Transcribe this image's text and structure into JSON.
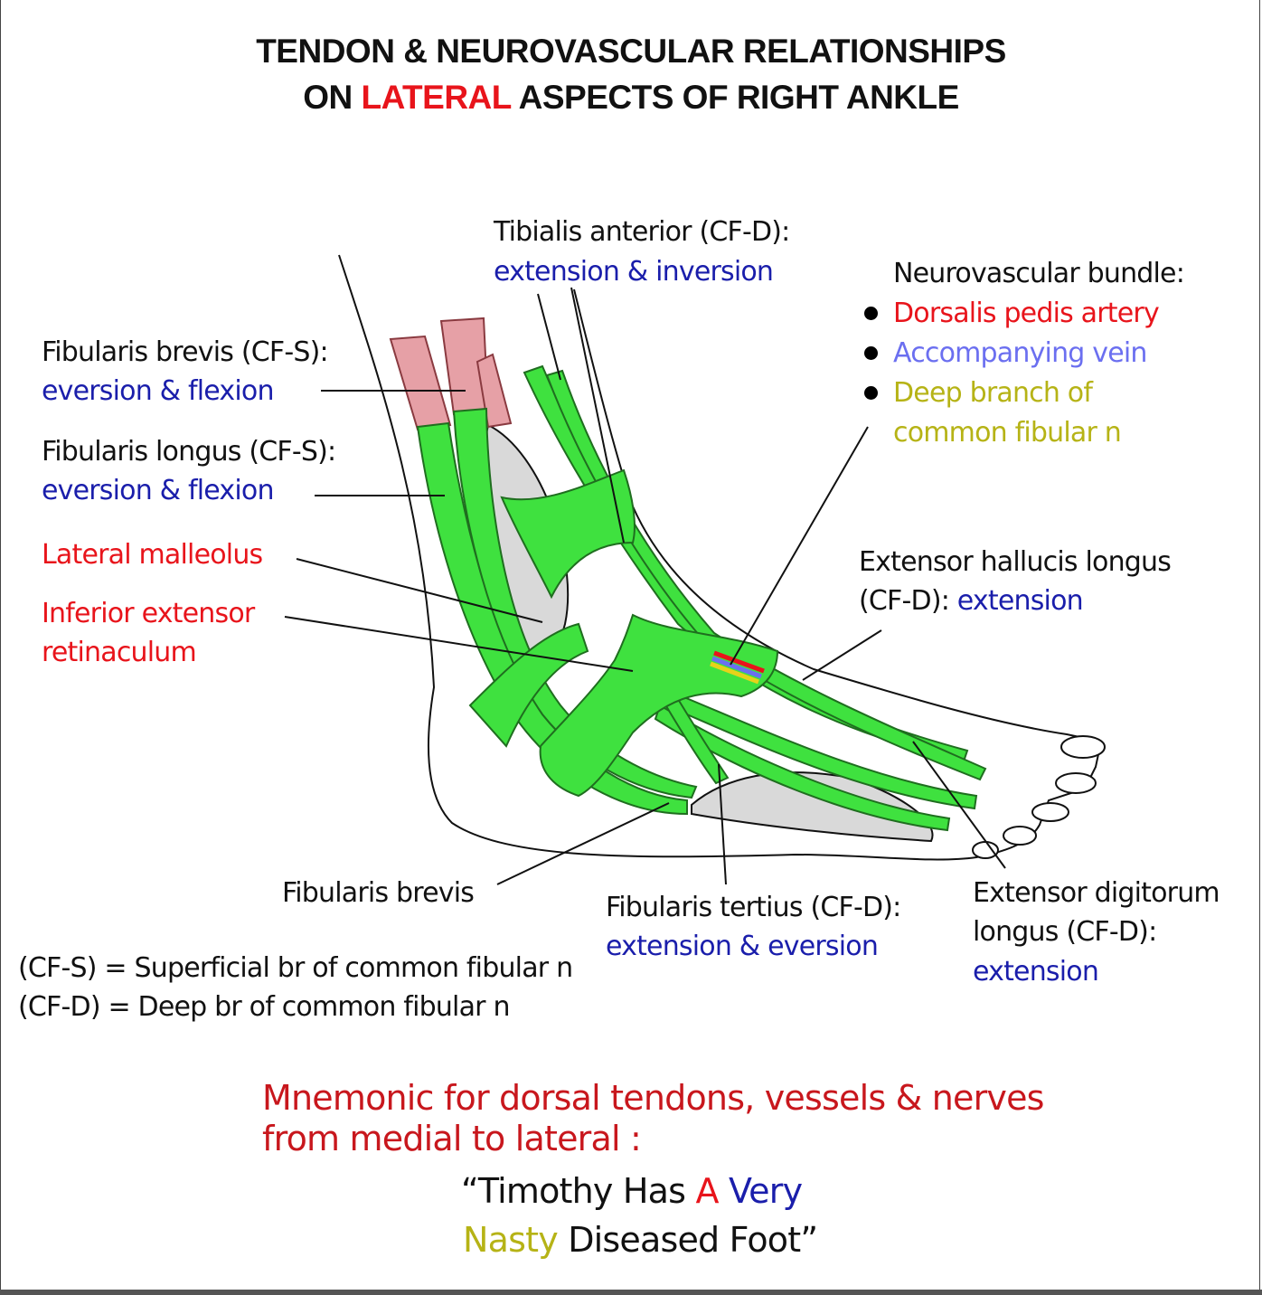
{
  "title": {
    "line1": "TENDON & NEUROVASCULAR RELATIONSHIPS",
    "line2_pre": "ON",
    "line2_highlight": "LATERAL",
    "line2_post": "ASPECTS OF RIGHT ANKLE"
  },
  "labels": {
    "tibialis_anterior": "Tibialis anterior (CF-D):",
    "tibialis_anterior_action": "extension & inversion",
    "fibularis_brevis": "Fibularis brevis (CF-S):",
    "fibularis_brevis_action": "eversion & flexion",
    "fibularis_longus": "Fibularis longus (CF-S):",
    "fibularis_longus_action": "eversion & flexion",
    "lateral_malleolus": "Lateral malleolus",
    "inferior_extensor_1": "Inferior extensor",
    "inferior_extensor_2": "retinaculum",
    "ehl_1": "Extensor hallucis longus",
    "ehl_2": "(CF-D):",
    "ehl_action": "extension",
    "fibularis_brevis_bottom": "Fibularis brevis",
    "fibularis_tertius": "Fibularis tertius (CF-D):",
    "fibularis_tertius_action": "extension & eversion",
    "edl_1": "Extensor digitorum",
    "edl_2": "longus (CF-D):",
    "edl_action": "extension"
  },
  "neurovascular": {
    "heading": "Neurovascular bundle:",
    "items": [
      {
        "text": "Dorsalis pedis artery",
        "color": "#e8141b"
      },
      {
        "text": "Accompanying vein",
        "color": "#6b6ff0"
      },
      {
        "text": "Deep branch of",
        "color": "#b6b316"
      }
    ],
    "item3_cont": "common fibular n"
  },
  "legend": {
    "cfs": "(CF-S) = Superficial br of common fibular n",
    "cfd": "(CF-D) = Deep br of common fibular n"
  },
  "mnemonic": {
    "line1": "Mnemonic for dorsal tendons, vessels & nerves",
    "line2": "from medial to lateral :",
    "q_open": "“Timothy Has",
    "q_a": "A",
    "q_very": "Very",
    "q_nasty": "Nasty",
    "q_close": "Diseased Foot”"
  },
  "colors": {
    "tendon": "#3fe13f",
    "tendon_outline": "#1f6e1f",
    "muscle": "#e6a0a6",
    "bone": "#d9d9d9",
    "artery": "#e8141b",
    "vein": "#6b6ff0",
    "nerve": "#e6d21a"
  }
}
